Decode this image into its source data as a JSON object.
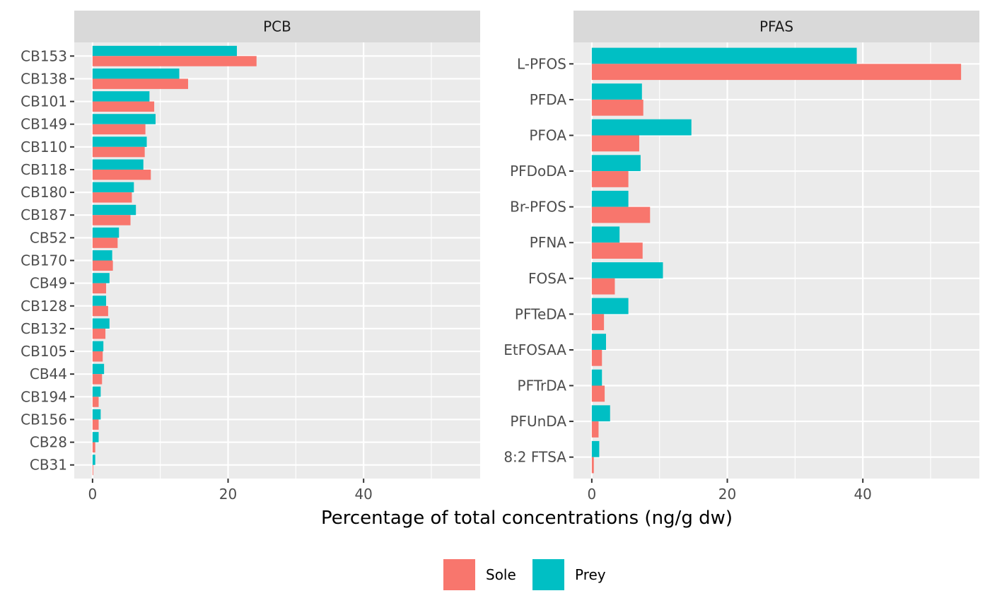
{
  "chart_data": {
    "type": "bar",
    "orientation": "horizontal",
    "xlabel": "Percentage of total concentrations (ng/g dw)",
    "xlim": [
      -2.7,
      57.2
    ],
    "x_breaks": [
      0,
      20,
      40
    ],
    "x_minor_breaks": [
      10,
      30,
      50
    ],
    "grid": true,
    "legend_position": "bottom",
    "colors": {
      "Sole": "#F8766D",
      "Prey": "#00BFC4",
      "panel_bg": "#EBEBEB",
      "strip_bg": "#D9D9D9",
      "grid": "#FFFFFF"
    },
    "legend": [
      {
        "name": "Sole",
        "color": "#F8766D"
      },
      {
        "name": "Prey",
        "color": "#00BFC4"
      }
    ],
    "panels": [
      {
        "strip": "PCB",
        "categories": [
          "CB153",
          "CB138",
          "CB101",
          "CB149",
          "CB110",
          "CB118",
          "CB180",
          "CB187",
          "CB52",
          "CB170",
          "CB49",
          "CB128",
          "CB132",
          "CB105",
          "CB44",
          "CB194",
          "CB156",
          "CB28",
          "CB31"
        ],
        "series": [
          {
            "name": "Sole",
            "values": [
              24.2,
              14.1,
              9.1,
              7.8,
              7.7,
              8.6,
              5.8,
              5.6,
              3.7,
              3.0,
              2.0,
              2.3,
              1.9,
              1.5,
              1.4,
              0.9,
              0.9,
              0.4,
              0.1
            ]
          },
          {
            "name": "Prey",
            "values": [
              21.3,
              12.8,
              8.4,
              9.3,
              8.0,
              7.5,
              6.1,
              6.4,
              3.9,
              2.9,
              2.5,
              2.0,
              2.5,
              1.6,
              1.7,
              1.2,
              1.2,
              0.9,
              0.4
            ]
          }
        ]
      },
      {
        "strip": "PFAS",
        "categories": [
          "L-PFOS",
          "PFDA",
          "PFOA",
          "PFDoDA",
          "Br-PFOS",
          "PFNA",
          "FOSA",
          "PFTeDA",
          "EtFOSAA",
          "PFTrDA",
          "PFUnDA",
          "8:2 FTSA"
        ],
        "series": [
          {
            "name": "Sole",
            "values": [
              54.5,
              7.6,
              7.0,
              5.4,
              8.6,
              7.5,
              3.4,
              1.8,
              1.5,
              1.9,
              1.0,
              0.3
            ]
          },
          {
            "name": "Prey",
            "values": [
              39.1,
              7.4,
              14.7,
              7.2,
              5.4,
              4.1,
              10.5,
              5.4,
              2.1,
              1.5,
              2.7,
              1.1
            ]
          }
        ]
      }
    ]
  }
}
